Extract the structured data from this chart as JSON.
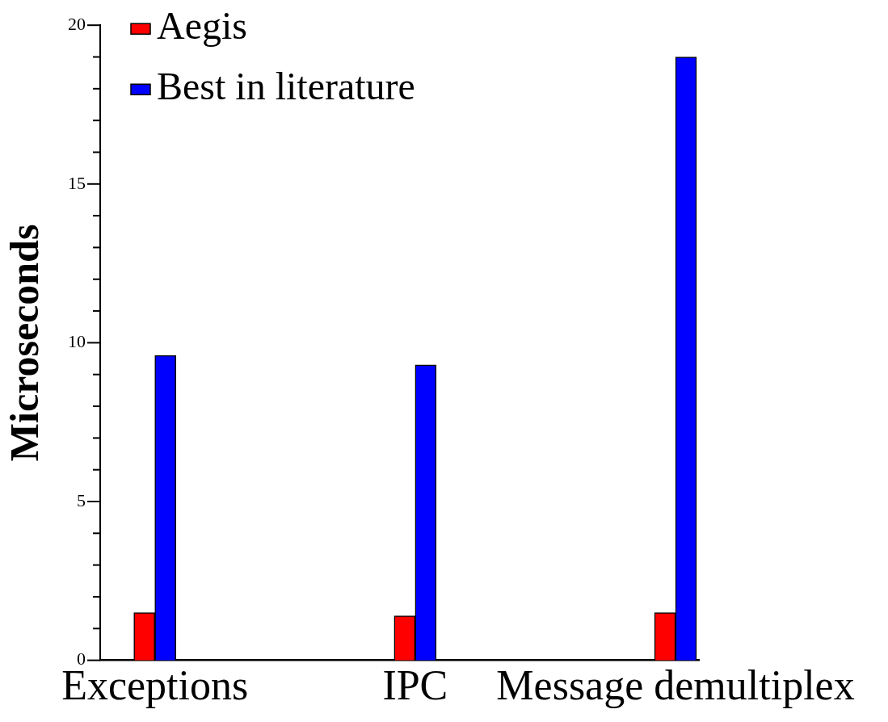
{
  "chart_data": {
    "type": "bar",
    "ylabel": "Microseconds",
    "categories": [
      "Exceptions",
      "IPC",
      "Message demultiplex"
    ],
    "series": [
      {
        "name": "Aegis",
        "color": "#ff0000",
        "values": [
          1.5,
          1.4,
          1.5
        ]
      },
      {
        "name": "Best in literature",
        "color": "#0000ff",
        "values": [
          9.6,
          9.3,
          19.0
        ]
      }
    ],
    "ylim": [
      0,
      20
    ],
    "yticks": [
      0,
      {
        "value": 1,
        "label": null
      },
      {
        "value": 2,
        "label": null
      },
      {
        "value": 3,
        "label": null
      },
      {
        "value": 4,
        "label": null
      },
      5,
      {
        "value": 6,
        "label": null
      },
      {
        "value": 7,
        "label": null
      },
      {
        "value": 8,
        "label": null
      },
      {
        "value": 9,
        "label": null
      },
      10,
      {
        "value": 11,
        "label": null
      },
      {
        "value": 12,
        "label": null
      },
      {
        "value": 13,
        "label": null
      },
      {
        "value": 14,
        "label": null
      },
      15,
      {
        "value": 16,
        "label": null
      },
      {
        "value": 17,
        "label": null
      },
      {
        "value": 18,
        "label": null
      },
      {
        "value": 19,
        "label": null
      },
      20
    ],
    "grid": false,
    "legend": "top left"
  }
}
